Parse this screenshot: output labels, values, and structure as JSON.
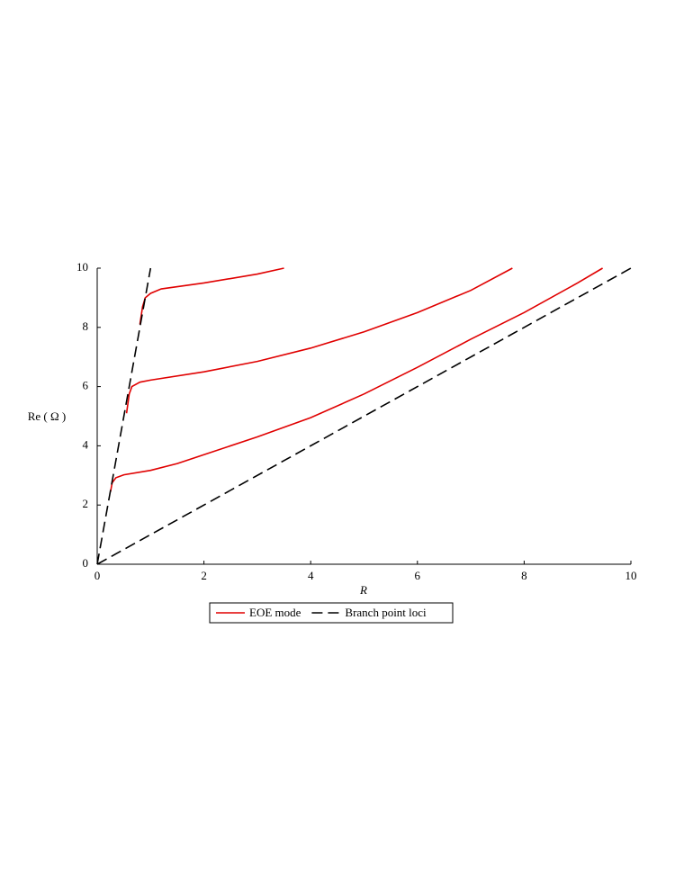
{
  "chart_data": {
    "type": "line",
    "xlabel": "R",
    "ylabel": "Re ( Ω )",
    "xlim": [
      0,
      10
    ],
    "ylim": [
      0,
      10
    ],
    "xticks": [
      0,
      2,
      4,
      6,
      8,
      10
    ],
    "yticks": [
      0,
      2,
      4,
      6,
      8,
      10
    ],
    "grid": false,
    "legend": "bottom",
    "series": [
      {
        "name": "EOE mode",
        "color": "#e00000",
        "dash": false,
        "x": [
          0.25,
          0.28,
          0.35,
          0.5,
          1,
          1.5,
          2,
          3,
          4,
          5,
          6,
          7,
          8,
          9,
          9.47,
          null,
          0.55,
          0.6,
          0.65,
          0.8,
          1,
          2,
          3,
          4,
          5,
          6,
          7,
          7.78,
          null,
          0.8,
          0.85,
          0.9,
          1,
          1.2,
          2,
          3,
          3.5
        ],
        "values": [
          2.45,
          2.75,
          2.92,
          3.02,
          3.17,
          3.4,
          3.7,
          4.3,
          4.95,
          5.75,
          6.65,
          7.6,
          8.5,
          9.5,
          10,
          null,
          5.1,
          5.75,
          6.0,
          6.15,
          6.22,
          6.5,
          6.85,
          7.3,
          7.85,
          8.5,
          9.25,
          10,
          null,
          8.1,
          8.7,
          9.0,
          9.15,
          9.3,
          9.5,
          9.8,
          10
        ]
      },
      {
        "name": "Branch point loci",
        "color": "#000000",
        "dash": true,
        "x": [
          0,
          1,
          null,
          0,
          10
        ],
        "values": [
          0,
          10,
          null,
          0,
          10
        ]
      }
    ]
  }
}
